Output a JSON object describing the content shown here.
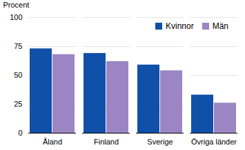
{
  "chart_data": {
    "type": "bar",
    "categories": [
      "Åland",
      "Finland",
      "Sverige",
      "Övriga länder"
    ],
    "series": [
      {
        "name": "Kvinnor",
        "color": "#1050a8",
        "values": [
          73,
          69,
          59,
          33
        ]
      },
      {
        "name": "Män",
        "color": "#9b85c2",
        "values": [
          68,
          62,
          54,
          26
        ]
      }
    ],
    "y_label": "Procent",
    "ylim": [
      0,
      100
    ],
    "yticks": [
      0,
      25,
      50,
      75,
      100
    ],
    "grid": true,
    "legend": "top-right"
  }
}
